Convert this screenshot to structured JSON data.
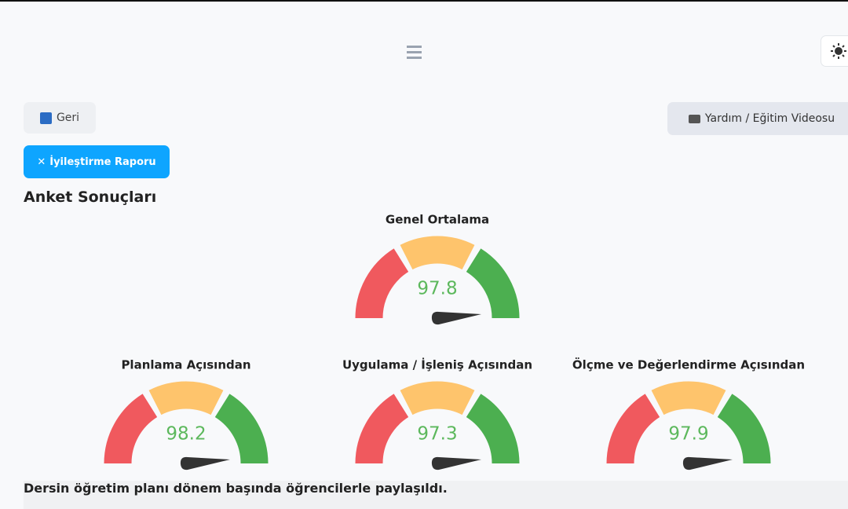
{
  "nav": {
    "back": "Geri",
    "help": "Yardım / Eğitim Videosu",
    "report": "İyileştirme Raporu"
  },
  "heading": "Anket Sonuçları",
  "gauges": [
    {
      "title": "Genel Ortalama",
      "value": 97.8
    },
    {
      "title": "Planlama Açısından",
      "value": 98.2
    },
    {
      "title": "Uygulama / İşleniş Açısından",
      "value": 97.3
    },
    {
      "title": "Ölçme ve Değerlendirme Açısından",
      "value": 97.9
    }
  ],
  "statement": "Dersin öğretim planı dönem başında öğrencilerle paylaşıldı."
}
